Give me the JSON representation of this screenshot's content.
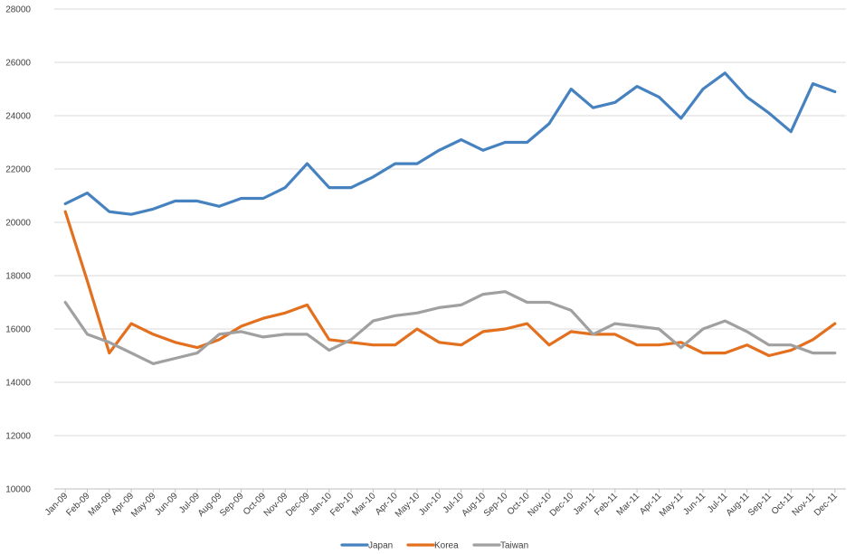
{
  "chart_data": {
    "type": "line",
    "title": "",
    "xlabel": "",
    "ylabel": "",
    "ylim": [
      10000,
      28000
    ],
    "yticks": [
      10000,
      12000,
      14000,
      16000,
      18000,
      20000,
      22000,
      24000,
      26000,
      28000
    ],
    "grid": true,
    "legend_position": "bottom",
    "categories": [
      "Jan-09",
      "Feb-09",
      "Mar-09",
      "Apr-09",
      "May-09",
      "Jun-09",
      "Jul-09",
      "Aug-09",
      "Sep-09",
      "Oct-09",
      "Nov-09",
      "Dec-09",
      "Jan-10",
      "Feb-10",
      "Mar-10",
      "Apr-10",
      "May-10",
      "Jun-10",
      "Jul-10",
      "Aug-10",
      "Sep-10",
      "Oct-10",
      "Nov-10",
      "Dec-10",
      "Jan-11",
      "Feb-11",
      "Mar-11",
      "Apr-11",
      "May-11",
      "Jun-11",
      "Jul-11",
      "Aug-11",
      "Sep-11",
      "Oct-11",
      "Nov-11",
      "Dec-11"
    ],
    "series": [
      {
        "name": "Japan",
        "color": "#4682c0",
        "values": [
          20700,
          21100,
          20400,
          20300,
          20500,
          20800,
          20800,
          20600,
          20900,
          20900,
          21300,
          22200,
          21300,
          21300,
          21700,
          22200,
          22200,
          22700,
          23100,
          22700,
          23000,
          23000,
          23700,
          25000,
          24300,
          24500,
          25100,
          24700,
          23900,
          25000,
          25600,
          24700,
          24100,
          23400,
          25200,
          24900
        ]
      },
      {
        "name": "Korea",
        "color": "#e2701f",
        "values": [
          20400,
          17800,
          15100,
          16200,
          15800,
          15500,
          15300,
          15600,
          16100,
          16400,
          16600,
          16900,
          15600,
          15500,
          15400,
          15400,
          16000,
          15500,
          15400,
          15900,
          16000,
          16200,
          15400,
          15900,
          15800,
          15800,
          15400,
          15400,
          15500,
          15100,
          15100,
          15400,
          15000,
          15200,
          15600,
          16200
        ]
      },
      {
        "name": "Taiwan",
        "color": "#a0a0a0",
        "values": [
          17000,
          15800,
          15500,
          15100,
          14700,
          14900,
          15100,
          15800,
          15900,
          15700,
          15800,
          15800,
          15200,
          15600,
          16300,
          16500,
          16600,
          16800,
          16900,
          17300,
          17400,
          17000,
          17000,
          16700,
          15800,
          16200,
          16100,
          16000,
          15300,
          16000,
          16300,
          15900,
          15400,
          15400,
          15100,
          15100
        ]
      }
    ]
  }
}
